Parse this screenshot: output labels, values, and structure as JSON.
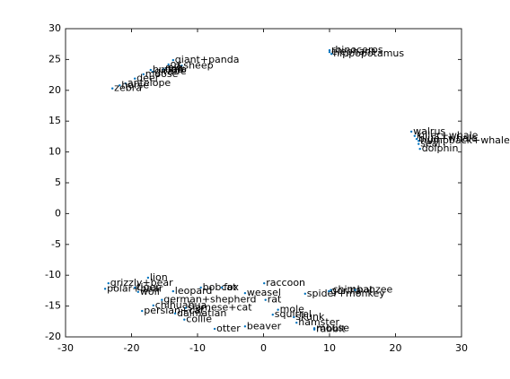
{
  "chart_data": {
    "type": "scatter",
    "color": "#0072bd",
    "grid": false,
    "xlim": [
      -30,
      30
    ],
    "xticks": [
      -30,
      -20,
      -10,
      0,
      10,
      20,
      30
    ],
    "ylim": [
      -20,
      30
    ],
    "yticks": [
      -20,
      -15,
      -10,
      -5,
      0,
      5,
      10,
      15,
      20,
      25,
      30
    ],
    "labels": [
      "giant+panda",
      "sheep",
      "ox",
      "pig",
      "cow",
      "buffalo",
      "giraffe",
      "moose",
      "deer",
      "antelope",
      "horse",
      "zebra",
      "rhinoceros",
      "elephant",
      "hippopotamus",
      "walrus",
      "killer+whale",
      "blue+whale",
      "humpback+whale",
      "seal",
      "dolphin",
      "lion",
      "grizzly+bear",
      "polar+bear",
      "tiger",
      "wolf",
      "leopard",
      "bobcat",
      "fox",
      "raccoon",
      "weasel",
      "german+shepherd",
      "rat",
      "chihuahua",
      "siamese+cat",
      "persian+cat",
      "dalmatian",
      "collie",
      "otter",
      "beaver",
      "mole",
      "squirrel",
      "skunk",
      "hamster",
      "rabbit",
      "mouse",
      "spider+monkey",
      "gorilla",
      "chimpanzee",
      "bat"
    ],
    "x": [
      -13.7,
      -12.4,
      -14.4,
      -14.8,
      -15.2,
      -17.1,
      -16.8,
      -18.2,
      -19.5,
      -20.9,
      -21.8,
      -22.9,
      10.0,
      10.0,
      10.3,
      22.4,
      22.9,
      23.2,
      23.5,
      23.5,
      23.7,
      -17.5,
      -23.5,
      -24.0,
      -19.5,
      -19.0,
      -13.7,
      -9.5,
      -6.3,
      0.1,
      -2.8,
      -15.4,
      0.3,
      -16.7,
      -11.8,
      -18.4,
      -13.4,
      -12.0,
      -7.4,
      -2.8,
      2.2,
      1.4,
      4.6,
      5.0,
      7.7,
      7.7,
      6.3,
      9.9,
      10.2,
      13.9
    ],
    "values": [
      24.9,
      24.0,
      24.2,
      23.6,
      23.4,
      23.3,
      23.0,
      22.6,
      21.9,
      21.1,
      20.8,
      20.3,
      26.5,
      26.2,
      25.9,
      13.3,
      12.6,
      12.1,
      11.8,
      11.3,
      10.5,
      -10.4,
      -11.3,
      -12.2,
      -12.0,
      -12.7,
      -12.6,
      -12.0,
      -12.0,
      -11.3,
      -12.9,
      -14.0,
      -14.0,
      -14.9,
      -15.3,
      -15.8,
      -16.2,
      -17.2,
      -18.7,
      -18.3,
      -15.6,
      -16.4,
      -16.8,
      -17.7,
      -18.8,
      -18.6,
      -13.0,
      -12.6,
      -12.4,
      -12.4
    ]
  }
}
